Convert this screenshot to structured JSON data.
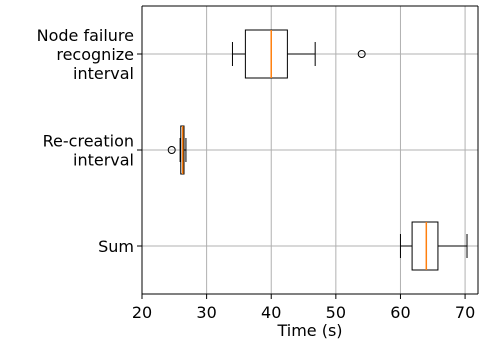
{
  "chart_data": {
    "type": "boxplot",
    "orientation": "horizontal",
    "title": "",
    "xlabel": "Time (s)",
    "ylabel": "",
    "xlim": [
      20,
      72
    ],
    "x_ticks": [
      20,
      30,
      40,
      50,
      60,
      70
    ],
    "grid": true,
    "categories": [
      {
        "lines": [
          "Node failure",
          "recognize",
          "interval"
        ],
        "stats": {
          "whislo": 34.0,
          "q1": 36.0,
          "median": 40.0,
          "q3": 42.5,
          "whishi": 46.8
        },
        "fliers": [
          54.0
        ]
      },
      {
        "lines": [
          "Re-creation",
          "interval"
        ],
        "stats": {
          "whislo": 25.9,
          "q1": 26.0,
          "median": 26.3,
          "q3": 26.5,
          "whishi": 26.8
        },
        "fliers": [
          24.6
        ]
      },
      {
        "lines": [
          "Sum"
        ],
        "stats": {
          "whislo": 60.0,
          "q1": 61.8,
          "median": 64.0,
          "q3": 65.8,
          "whishi": 70.3
        },
        "fliers": []
      }
    ],
    "colors": {
      "box": "#000000",
      "median": "#ff7f0e",
      "grid": "#b0b0b0",
      "axis": "#000000"
    }
  }
}
